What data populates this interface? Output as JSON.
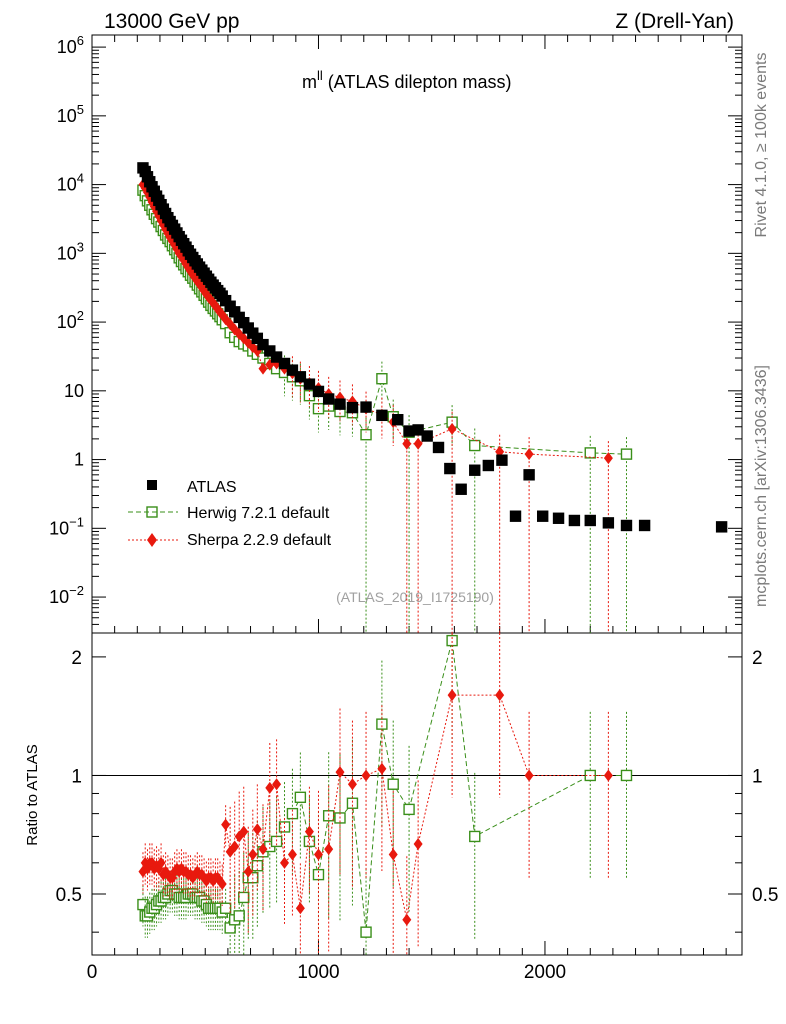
{
  "header": {
    "left": "13000 GeV pp",
    "right": "Z (Drell-Yan)"
  },
  "side_labels": {
    "rivet": "Rivet 4.1.0, ≥ 100k events",
    "mcplots": "mcplots.cern.ch [arXiv:1306.3436]"
  },
  "watermark": "(ATLAS_2019_I1725190)",
  "plot_title": {
    "main": "m",
    "sup": "ll",
    "rest": " (ATLAS dilepton mass)"
  },
  "legend": {
    "atlas": "ATLAS",
    "herwig": "Herwig 7.2.1 default",
    "sherpa": "Sherpa 2.2.9 default"
  },
  "colors": {
    "atlas": "#000000",
    "herwig": "#3a8f1a",
    "sherpa": "#e8190e"
  },
  "ratio_ylabel": "Ratio to ATLAS",
  "main_ticks": {
    "labels": [
      "10",
      "10",
      "10",
      "10",
      "10",
      "10",
      "1",
      "10",
      "10"
    ],
    "exps": [
      "6",
      "5",
      "4",
      "3",
      "2",
      "",
      "",
      "−1",
      "−2"
    ],
    "values": [
      1000000,
      100000,
      10000,
      1000,
      100,
      10,
      1,
      0.1,
      0.01
    ]
  },
  "ratio_ticks": {
    "labels": [
      "2",
      "1",
      "0.5"
    ],
    "values": [
      2,
      1,
      0.5
    ]
  },
  "x_ticks": {
    "labels": [
      "0",
      "1000",
      "2000"
    ],
    "values": [
      0,
      1000,
      2000
    ]
  },
  "chart_data": {
    "type": "scatter",
    "title": "m^ll (ATLAS dilepton mass)",
    "xlabel": "",
    "ylabel": "",
    "xlim": [
      0,
      2870
    ],
    "ylim": [
      0.003,
      1500000
    ],
    "yscale": "log",
    "ratio": {
      "ylabel": "Ratio to ATLAS",
      "ylim": [
        0.35,
        2.3
      ],
      "yscale": "log"
    },
    "series": [
      {
        "name": "ATLAS",
        "x": [
          225,
          235,
          245,
          255,
          265,
          275,
          285,
          295,
          305,
          315,
          325,
          335,
          345,
          355,
          365,
          375,
          385,
          395,
          405,
          415,
          425,
          435,
          445,
          455,
          465,
          475,
          485,
          495,
          505,
          515,
          525,
          535,
          545,
          555,
          565,
          575,
          590,
          610,
          630,
          650,
          670,
          690,
          710,
          730,
          755,
          785,
          815,
          850,
          885,
          920,
          960,
          1000,
          1045,
          1095,
          1150,
          1210,
          1280,
          1350,
          1400,
          1440,
          1480,
          1530,
          1580,
          1630,
          1690,
          1750,
          1810,
          1870,
          1930,
          1990,
          2060,
          2130,
          2200,
          2280,
          2360,
          2440,
          2780
        ],
        "values": [
          17500,
          15500,
          13000,
          11000,
          9300,
          8000,
          6800,
          5900,
          5100,
          4400,
          3800,
          3300,
          2900,
          2550,
          2250,
          1980,
          1750,
          1550,
          1380,
          1230,
          1090,
          970,
          870,
          780,
          700,
          630,
          570,
          515,
          465,
          420,
          380,
          345,
          315,
          287,
          262,
          239,
          205,
          170,
          141,
          117,
          98,
          82,
          69,
          58,
          47,
          38,
          31,
          25,
          20,
          16,
          12.5,
          9.8,
          7.6,
          6.4,
          5.7,
          5.8,
          4.4,
          3.8,
          2.6,
          2.7,
          2.2,
          1.5,
          0.74,
          0.37,
          0.7,
          0.82,
          0.98,
          0.15,
          0.6,
          0.15,
          0.14,
          0.13,
          0.13,
          0.12,
          0.11,
          0.11,
          0.105
        ]
      },
      {
        "name": "Herwig 7.2.1 default",
        "x": [
          225,
          235,
          245,
          255,
          265,
          275,
          285,
          295,
          305,
          315,
          325,
          335,
          345,
          355,
          365,
          375,
          385,
          395,
          405,
          415,
          425,
          435,
          445,
          455,
          465,
          475,
          485,
          495,
          505,
          515,
          525,
          535,
          545,
          555,
          565,
          575,
          590,
          610,
          630,
          650,
          670,
          690,
          710,
          730,
          755,
          785,
          815,
          850,
          885,
          920,
          960,
          1000,
          1045,
          1095,
          1150,
          1210,
          1280,
          1330,
          1400,
          1590,
          1690,
          2200,
          2360
        ],
        "values": [
          8300,
          6900,
          5800,
          5000,
          4300,
          3700,
          3200,
          2850,
          2450,
          2150,
          1850,
          1650,
          1480,
          1290,
          1130,
          1000,
          860,
          760,
          680,
          600,
          540,
          480,
          435,
          385,
          345,
          305,
          275,
          245,
          218,
          195,
          175,
          158,
          145,
          132,
          120,
          108,
          95,
          70,
          60,
          52,
          48,
          45,
          38,
          34,
          30,
          25,
          21,
          18.5,
          16,
          14,
          8.5,
          5.5,
          6,
          5,
          4.8,
          2.3,
          15,
          4.2,
          2.5,
          3.5,
          1.6,
          1.25,
          1.2
        ],
        "ratio": [
          0.47,
          0.44,
          0.44,
          0.45,
          0.46,
          0.46,
          0.47,
          0.48,
          0.48,
          0.49,
          0.49,
          0.5,
          0.51,
          0.51,
          0.5,
          0.5,
          0.49,
          0.49,
          0.49,
          0.49,
          0.5,
          0.5,
          0.5,
          0.49,
          0.49,
          0.49,
          0.48,
          0.48,
          0.47,
          0.46,
          0.46,
          0.46,
          0.46,
          0.46,
          0.46,
          0.45,
          0.46,
          0.41,
          0.43,
          0.44,
          0.49,
          0.55,
          0.55,
          0.59,
          0.64,
          0.66,
          0.68,
          0.74,
          0.8,
          0.88,
          0.68,
          0.56,
          0.79,
          0.78,
          0.85,
          0.4,
          1.35,
          0.95,
          0.82,
          2.2,
          0.7,
          1.0,
          1.0
        ]
      },
      {
        "name": "Sherpa 2.2.9 default",
        "x": [
          225,
          235,
          245,
          255,
          265,
          275,
          285,
          295,
          305,
          315,
          325,
          335,
          345,
          355,
          365,
          375,
          385,
          395,
          405,
          415,
          425,
          435,
          445,
          455,
          465,
          475,
          485,
          495,
          505,
          515,
          525,
          535,
          545,
          555,
          565,
          575,
          590,
          610,
          630,
          650,
          670,
          690,
          710,
          730,
          755,
          785,
          815,
          850,
          885,
          920,
          960,
          1000,
          1045,
          1095,
          1150,
          1210,
          1280,
          1330,
          1390,
          1440,
          1590,
          1800,
          1930,
          2280
        ],
        "values": [
          10000,
          8900,
          7700,
          6600,
          5600,
          4800,
          4100,
          3500,
          3000,
          2600,
          2250,
          1950,
          1700,
          1500,
          1330,
          1150,
          1000,
          900,
          800,
          700,
          620,
          550,
          490,
          440,
          395,
          355,
          320,
          285,
          255,
          230,
          210,
          190,
          172,
          155,
          140,
          128,
          110,
          93,
          78,
          67,
          58,
          50,
          43,
          38,
          21,
          24,
          25,
          21,
          18,
          15,
          13,
          11,
          9,
          8,
          7,
          5.5,
          4.5,
          3.5,
          1.7,
          1.7,
          2.8,
          1.3,
          1.2,
          1.05
        ],
        "ratio": [
          0.57,
          0.6,
          0.58,
          0.6,
          0.6,
          0.58,
          0.59,
          0.58,
          0.6,
          0.56,
          0.57,
          0.56,
          0.55,
          0.55,
          0.57,
          0.58,
          0.57,
          0.58,
          0.57,
          0.57,
          0.56,
          0.56,
          0.55,
          0.56,
          0.57,
          0.56,
          0.56,
          0.55,
          0.54,
          0.55,
          0.55,
          0.54,
          0.55,
          0.55,
          0.54,
          0.53,
          0.75,
          0.64,
          0.66,
          0.7,
          0.72,
          0.57,
          0.63,
          0.73,
          0.65,
          0.93,
          0.95,
          0.6,
          0.63,
          0.46,
          0.72,
          0.63,
          0.65,
          1.02,
          0.95,
          1.0,
          1.04,
          0.63,
          0.43,
          0.67,
          1.6,
          1.6,
          1.0,
          1.0
        ]
      }
    ],
    "annotations": [
      "13000 GeV pp",
      "Z (Drell-Yan)",
      "(ATLAS_2019_I1725190)"
    ]
  }
}
